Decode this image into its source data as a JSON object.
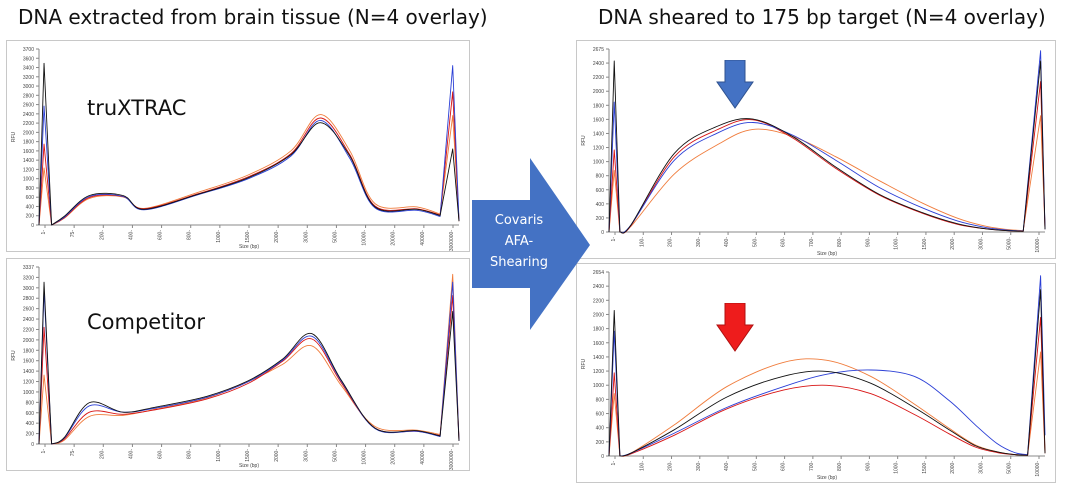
{
  "titles": {
    "left": "DNA extracted from brain tissue (N=4 overlay)",
    "right": "DNA sheared to 175 bp target (N=4 overlay)"
  },
  "labels": {
    "truxtrac": "truXTRAC",
    "competitor": "Competitor"
  },
  "center_arrow": {
    "line1": "Covaris",
    "line2": "AFA-",
    "line3": "Shearing",
    "color": "#4472c4"
  },
  "markers": {
    "blue_arrow_color": "#4472c4",
    "red_arrow_color": "#ee1c1c"
  },
  "series_colors": {
    "black": "#111111",
    "blue": "#2b3fd6",
    "red": "#d81414",
    "orange": "#f07c3c"
  },
  "chart_data": [
    {
      "id": "truxtrac_extracted",
      "type": "line",
      "ylabel": "RFU",
      "xlabel": "Size (bp)",
      "yticks": [
        "3700",
        "3600",
        "3400",
        "3200",
        "3000",
        "2800",
        "2600",
        "2400",
        "2200",
        "2000",
        "1800",
        "1600",
        "1400",
        "1200",
        "1000",
        "800",
        "600",
        "400",
        "200",
        "0"
      ],
      "xticks": [
        "1-",
        "75-",
        "200-",
        "400-",
        "600-",
        "800-",
        "1000-",
        "1500-",
        "2000-",
        "3000-",
        "5000-",
        "10000-",
        "20000-",
        "40000-",
        "3000000-"
      ],
      "ylim": [
        0,
        3700
      ],
      "series": [
        {
          "name": "black",
          "values": [
            0,
            3400,
            0,
            180,
            620,
            620,
            330,
            650,
            1000,
            1480,
            2150,
            1450,
            380,
            330,
            200,
            1600,
            80
          ]
        },
        {
          "name": "blue",
          "values": [
            0,
            2500,
            0,
            160,
            600,
            600,
            320,
            640,
            980,
            1450,
            2200,
            1400,
            360,
            310,
            180,
            3350,
            90
          ]
        },
        {
          "name": "red",
          "values": [
            0,
            1700,
            0,
            150,
            580,
            600,
            340,
            660,
            1020,
            1500,
            2250,
            1480,
            400,
            340,
            210,
            2800,
            80
          ]
        },
        {
          "name": "orange",
          "values": [
            0,
            1200,
            0,
            140,
            560,
            590,
            350,
            690,
            1060,
            1560,
            2320,
            1560,
            450,
            380,
            230,
            2300,
            100
          ]
        }
      ]
    },
    {
      "id": "competitor_extracted",
      "type": "line",
      "ylabel": "RFU",
      "xlabel": "Size (bp)",
      "yticks": [
        "3337",
        "3200",
        "3000",
        "2800",
        "2600",
        "2400",
        "2200",
        "2000",
        "1800",
        "1600",
        "1400",
        "1200",
        "1000",
        "800",
        "600",
        "400",
        "200",
        "0"
      ],
      "xticks": [
        "1-",
        "75-",
        "200-",
        "400-",
        "600-",
        "800-",
        "1000-",
        "1500-",
        "2000-",
        "3000-",
        "5000-",
        "10000-",
        "20000-",
        "40000-",
        "3000000-"
      ],
      "ylim": [
        0,
        3337
      ],
      "series": [
        {
          "name": "black",
          "values": [
            0,
            3050,
            0,
            120,
            780,
            600,
            700,
            900,
            1200,
            1600,
            2080,
            1200,
            300,
            250,
            150,
            2500,
            60
          ]
        },
        {
          "name": "blue",
          "values": [
            0,
            2900,
            0,
            110,
            720,
            600,
            680,
            880,
            1180,
            1580,
            2030,
            1180,
            290,
            240,
            140,
            3050,
            60
          ]
        },
        {
          "name": "red",
          "values": [
            0,
            2200,
            0,
            90,
            600,
            560,
            650,
            850,
            1150,
            1560,
            1980,
            1150,
            300,
            240,
            160,
            2800,
            60
          ]
        },
        {
          "name": "orange",
          "values": [
            0,
            1300,
            0,
            70,
            520,
            540,
            660,
            870,
            1180,
            1500,
            1850,
            1100,
            330,
            260,
            180,
            3200,
            80
          ]
        }
      ]
    },
    {
      "id": "truxtrac_sheared",
      "type": "line",
      "ylabel": "RFU",
      "xlabel": "Size (bp)",
      "yticks": [
        "2675",
        "2400",
        "2200",
        "2000",
        "1800",
        "1600",
        "1400",
        "1200",
        "1000",
        "800",
        "600",
        "400",
        "200",
        "0"
      ],
      "xticks": [
        "1-",
        "100-",
        "200-",
        "300-",
        "400-",
        "500-",
        "600-",
        "700-",
        "800-",
        "900-",
        "1000-",
        "1500-",
        "2000-",
        "3000-",
        "5000-",
        "10000-"
      ],
      "ylim": [
        0,
        2675
      ],
      "series": [
        {
          "name": "black",
          "values": [
            0,
            2500,
            0,
            100,
            1150,
            1550,
            1650,
            1400,
            950,
            550,
            280,
            120,
            50,
            20,
            10,
            2500,
            40
          ]
        },
        {
          "name": "blue",
          "values": [
            0,
            1900,
            0,
            100,
            1050,
            1450,
            1600,
            1420,
            1050,
            650,
            350,
            160,
            70,
            30,
            15,
            2650,
            40
          ]
        },
        {
          "name": "red",
          "values": [
            0,
            1200,
            0,
            90,
            1100,
            1500,
            1640,
            1380,
            930,
            540,
            270,
            110,
            50,
            20,
            10,
            2200,
            40
          ]
        },
        {
          "name": "orange",
          "values": [
            0,
            900,
            0,
            80,
            850,
            1280,
            1500,
            1400,
            1100,
            750,
            420,
            200,
            90,
            40,
            20,
            1700,
            60
          ]
        }
      ]
    },
    {
      "id": "competitor_sheared",
      "type": "line",
      "ylabel": "RFU",
      "xlabel": "Size (bp)",
      "yticks": [
        "2654",
        "2400",
        "2200",
        "2000",
        "1800",
        "1600",
        "1400",
        "1200",
        "1000",
        "800",
        "600",
        "400",
        "200",
        "0"
      ],
      "xticks": [
        "1-",
        "100-",
        "200-",
        "300-",
        "400-",
        "500-",
        "600-",
        "700-",
        "800-",
        "900-",
        "1000-",
        "1500-",
        "2000-",
        "3000-",
        "5000-",
        "10000-"
      ],
      "ylim": [
        0,
        2654
      ],
      "series": [
        {
          "name": "black",
          "values": [
            0,
            2100,
            0,
            40,
            380,
            850,
            1150,
            1220,
            1050,
            700,
            380,
            150,
            60,
            20,
            10,
            2400,
            40
          ]
        },
        {
          "name": "blue",
          "values": [
            0,
            1800,
            0,
            40,
            330,
            700,
            1000,
            1180,
            1240,
            1150,
            800,
            450,
            180,
            50,
            20,
            2600,
            300
          ]
        },
        {
          "name": "red",
          "values": [
            0,
            1200,
            0,
            30,
            300,
            680,
            950,
            1020,
            900,
            600,
            320,
            130,
            50,
            20,
            10,
            2000,
            40
          ]
        },
        {
          "name": "orange",
          "values": [
            0,
            900,
            0,
            40,
            450,
            1000,
            1350,
            1380,
            1150,
            750,
            400,
            160,
            60,
            20,
            10,
            1500,
            40
          ]
        }
      ]
    }
  ]
}
